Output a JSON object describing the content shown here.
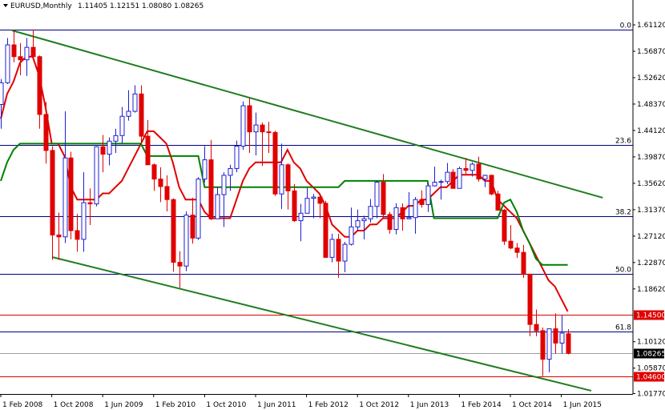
{
  "chart_data": {
    "type": "candlestick",
    "title": "EURUSD,Monthly",
    "header_ohlc": [
      "1.11405",
      "1.12151",
      "1.08080",
      "1.08265"
    ],
    "categories": [
      "1 Feb 2008",
      null,
      null,
      null,
      null,
      null,
      null,
      null,
      "1 Oct 2008",
      null,
      null,
      null,
      null,
      null,
      null,
      null,
      "1 Jun 2009",
      null,
      null,
      null,
      null,
      null,
      null,
      null,
      "1 Feb 2010",
      null,
      null,
      null,
      null,
      null,
      null,
      null,
      "1 Oct 2010",
      null,
      null,
      null,
      null,
      null,
      null,
      null,
      "1 Jun 2011",
      null,
      null,
      null,
      null,
      null,
      null,
      null,
      "1 Feb 2012",
      null,
      null,
      null,
      null,
      null,
      null,
      null,
      "1 Oct 2012",
      null,
      null,
      null,
      null,
      null,
      null,
      null,
      "1 Jun 2013",
      null,
      null,
      null,
      null,
      null,
      null,
      null,
      "1 Feb 2014",
      null,
      null,
      null,
      null,
      null,
      null,
      null,
      "1 Oct 2014",
      null,
      null,
      null,
      null,
      null,
      null,
      null,
      "1 Jun 2015",
      null
    ],
    "open": [
      1.483,
      1.518,
      1.579,
      1.56,
      1.555,
      1.575,
      1.56,
      1.467,
      1.409,
      1.273,
      1.27,
      1.397,
      1.28,
      1.266,
      1.325,
      1.323,
      1.415,
      1.403,
      1.424,
      1.433,
      1.464,
      1.472,
      1.5,
      1.432,
      1.386,
      1.363,
      1.351,
      1.33,
      1.229,
      1.223,
      1.305,
      1.268,
      1.363,
      1.394,
      1.299,
      1.338,
      1.369,
      1.38,
      1.416,
      1.481,
      1.439,
      1.45,
      1.439,
      1.438,
      1.339,
      1.386,
      1.344,
      1.296,
      1.308,
      1.332,
      1.334,
      1.324,
      1.237,
      1.266,
      1.231,
      1.258,
      1.286,
      1.296,
      1.299,
      1.319,
      1.358,
      1.306,
      1.282,
      1.317,
      1.299,
      1.301,
      1.33,
      1.322,
      1.352,
      1.358,
      1.359,
      1.374,
      1.348,
      1.38,
      1.377,
      1.387,
      1.363,
      1.369,
      1.339,
      1.313,
      1.263,
      1.252,
      1.245,
      1.21,
      1.129,
      1.119,
      1.073,
      1.122,
      1.099,
      1.1141
    ],
    "high": [
      1.524,
      1.59,
      1.602,
      1.582,
      1.59,
      1.6038,
      1.562,
      1.487,
      1.416,
      1.309,
      1.472,
      1.407,
      1.307,
      1.374,
      1.348,
      1.416,
      1.434,
      1.43,
      1.444,
      1.479,
      1.506,
      1.514,
      1.514,
      1.458,
      1.388,
      1.382,
      1.369,
      1.332,
      1.247,
      1.311,
      1.333,
      1.366,
      1.416,
      1.426,
      1.35,
      1.374,
      1.386,
      1.425,
      1.488,
      1.494,
      1.47,
      1.454,
      1.455,
      1.441,
      1.42,
      1.388,
      1.355,
      1.323,
      1.349,
      1.339,
      1.339,
      1.328,
      1.275,
      1.275,
      1.262,
      1.317,
      1.314,
      1.304,
      1.331,
      1.36,
      1.371,
      1.31,
      1.324,
      1.324,
      1.342,
      1.334,
      1.345,
      1.357,
      1.383,
      1.362,
      1.389,
      1.379,
      1.383,
      1.397,
      1.39,
      1.399,
      1.37,
      1.37,
      1.344,
      1.315,
      1.289,
      1.26,
      1.257,
      1.21,
      1.153,
      1.124,
      1.122,
      1.147,
      1.144,
      1.1215
    ],
    "low": [
      1.444,
      1.516,
      1.551,
      1.53,
      1.529,
      1.556,
      1.444,
      1.388,
      1.233,
      1.233,
      1.26,
      1.266,
      1.246,
      1.246,
      1.289,
      1.319,
      1.374,
      1.385,
      1.405,
      1.42,
      1.457,
      1.47,
      1.42,
      1.386,
      1.344,
      1.326,
      1.311,
      1.214,
      1.188,
      1.215,
      1.259,
      1.265,
      1.358,
      1.297,
      1.3,
      1.286,
      1.344,
      1.374,
      1.41,
      1.405,
      1.401,
      1.384,
      1.405,
      1.336,
      1.315,
      1.314,
      1.294,
      1.263,
      1.308,
      1.3,
      1.3,
      1.236,
      1.229,
      1.204,
      1.213,
      1.256,
      1.28,
      1.266,
      1.293,
      1.3,
      1.3,
      1.275,
      1.274,
      1.28,
      1.299,
      1.275,
      1.317,
      1.31,
      1.351,
      1.33,
      1.355,
      1.348,
      1.348,
      1.37,
      1.367,
      1.359,
      1.35,
      1.337,
      1.312,
      1.257,
      1.25,
      1.236,
      1.204,
      1.11,
      1.11,
      1.046,
      1.052,
      1.082,
      1.082,
      1.0808
    ],
    "close": [
      1.518,
      1.579,
      1.56,
      1.555,
      1.575,
      1.56,
      1.467,
      1.409,
      1.273,
      1.27,
      1.397,
      1.28,
      1.266,
      1.325,
      1.323,
      1.415,
      1.403,
      1.424,
      1.433,
      1.464,
      1.472,
      1.5,
      1.432,
      1.386,
      1.363,
      1.351,
      1.33,
      1.229,
      1.223,
      1.305,
      1.268,
      1.363,
      1.394,
      1.299,
      1.338,
      1.369,
      1.38,
      1.416,
      1.481,
      1.439,
      1.45,
      1.439,
      1.438,
      1.339,
      1.386,
      1.344,
      1.296,
      1.308,
      1.332,
      1.334,
      1.324,
      1.237,
      1.266,
      1.231,
      1.258,
      1.286,
      1.296,
      1.299,
      1.319,
      1.358,
      1.306,
      1.282,
      1.317,
      1.299,
      1.301,
      1.33,
      1.322,
      1.352,
      1.358,
      1.359,
      1.374,
      1.348,
      1.38,
      1.377,
      1.387,
      1.363,
      1.369,
      1.339,
      1.313,
      1.263,
      1.252,
      1.245,
      1.21,
      1.129,
      1.119,
      1.073,
      1.122,
      1.099,
      1.115,
      1.0826
    ],
    "bull_color": "#1f1fd0",
    "bear_color": "#e00000",
    "lines": [
      {
        "color": "#e00000",
        "values": [
          1.46,
          1.5,
          1.52,
          1.55,
          1.56,
          1.56,
          1.53,
          1.48,
          1.42,
          1.42,
          1.4,
          1.35,
          1.33,
          1.33,
          1.33,
          1.33,
          1.34,
          1.34,
          1.35,
          1.36,
          1.38,
          1.4,
          1.42,
          1.44,
          1.44,
          1.43,
          1.42,
          1.39,
          1.35,
          1.33,
          1.33,
          1.33,
          1.31,
          1.3,
          1.3,
          1.3,
          1.3,
          1.33,
          1.36,
          1.38,
          1.39,
          1.39,
          1.39,
          1.39,
          1.39,
          1.41,
          1.39,
          1.38,
          1.36,
          1.35,
          1.34,
          1.32,
          1.29,
          1.28,
          1.27,
          1.27,
          1.28,
          1.28,
          1.29,
          1.29,
          1.3,
          1.3,
          1.3,
          1.31,
          1.32,
          1.32,
          1.33,
          1.33,
          1.34,
          1.35,
          1.35,
          1.36,
          1.37,
          1.37,
          1.37,
          1.37,
          1.36,
          1.36,
          1.33,
          1.32,
          1.31,
          1.3,
          1.28,
          1.26,
          1.24,
          1.22,
          1.2,
          1.19,
          1.17,
          1.15
        ]
      },
      {
        "color": "#008000",
        "values": [
          1.36,
          1.39,
          1.41,
          1.42,
          1.42,
          1.42,
          1.42,
          1.42,
          1.42,
          1.42,
          1.42,
          1.42,
          1.42,
          1.42,
          1.42,
          1.42,
          1.42,
          1.42,
          1.42,
          1.42,
          1.42,
          1.42,
          1.42,
          1.4,
          1.4,
          1.4,
          1.4,
          1.4,
          1.4,
          1.4,
          1.4,
          1.4,
          1.35,
          1.35,
          1.35,
          1.35,
          1.35,
          1.35,
          1.35,
          1.35,
          1.35,
          1.35,
          1.35,
          1.35,
          1.35,
          1.35,
          1.35,
          1.35,
          1.35,
          1.35,
          1.35,
          1.35,
          1.35,
          1.35,
          1.36,
          1.36,
          1.36,
          1.36,
          1.36,
          1.36,
          1.36,
          1.36,
          1.36,
          1.36,
          1.36,
          1.36,
          1.36,
          1.36,
          1.3,
          1.3,
          1.3,
          1.3,
          1.3,
          1.3,
          1.3,
          1.3,
          1.3,
          1.3,
          1.3,
          1.325,
          1.33,
          1.31,
          1.28,
          1.26,
          1.235,
          1.225,
          1.225,
          1.225,
          1.225,
          1.225
        ]
      }
    ],
    "trendlines": [
      {
        "color": "#1e7d1e",
        "from": [
          1.76,
          1.6022
        ],
        "to": [
          94.5,
          1.3329
        ]
      },
      {
        "color": "#1e7d1e",
        "from": [
          8.05,
          1.2375
        ],
        "to": [
          92.7,
          1.0223
        ]
      }
    ],
    "fib_levels": [
      {
        "value": 1.604,
        "label": "0.0"
      },
      {
        "value": 1.418,
        "label": "23.6"
      },
      {
        "value": 1.303,
        "label": "38.2"
      },
      {
        "value": 1.21,
        "label": "50.0"
      },
      {
        "value": 1.117,
        "label": "61.8"
      }
    ],
    "price_levels": [
      {
        "value": 1.145,
        "label": "1.14500",
        "color": "#e00000"
      },
      {
        "value": 1.046,
        "label": "1.04600",
        "color": "#e00000"
      }
    ],
    "current_price": {
      "value": 1.08265,
      "label": "1.08265"
    },
    "ylim": [
      1.0171,
      1.6512
    ],
    "yticks": [
      {
        "value": 1.6112,
        "label": "1.61120"
      },
      {
        "value": 1.5687,
        "label": "1.56870"
      },
      {
        "value": 1.5262,
        "label": "1.52620"
      },
      {
        "value": 1.4837,
        "label": "1.48370"
      },
      {
        "value": 1.4412,
        "label": "1.44120"
      },
      {
        "value": 1.3987,
        "label": "1.39870"
      },
      {
        "value": 1.3562,
        "label": "1.35620"
      },
      {
        "value": 1.3137,
        "label": "1.31370"
      },
      {
        "value": 1.2712,
        "label": "1.27120"
      },
      {
        "value": 1.2287,
        "label": "1.22870"
      },
      {
        "value": 1.1862,
        "label": "1.18620"
      },
      {
        "value": 1.1012,
        "label": "1.10120"
      },
      {
        "value": 1.0587,
        "label": "1.05870"
      },
      {
        "value": 1.0177,
        "label": "1.01770"
      }
    ]
  }
}
